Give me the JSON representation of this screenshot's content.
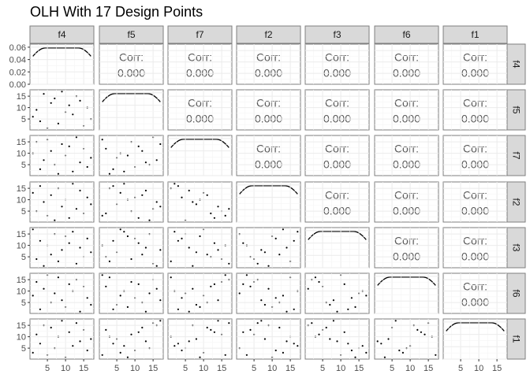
{
  "chart_data": {
    "type": "scatter-matrix",
    "title": "OLH With 17 Design Points",
    "variables": [
      "f4",
      "f5",
      "f7",
      "f2",
      "f3",
      "f6",
      "f1"
    ],
    "n_points": 17,
    "design": {
      "f4": [
        1,
        2,
        3,
        4,
        5,
        6,
        7,
        8,
        9,
        10,
        11,
        12,
        13,
        14,
        15,
        16,
        17
      ],
      "f5": [
        6,
        9,
        4,
        16,
        1,
        12,
        14,
        3,
        17,
        8,
        11,
        7,
        15,
        13,
        2,
        10,
        5
      ],
      "f7": [
        10,
        15,
        3,
        7,
        16,
        11,
        5,
        1,
        14,
        9,
        13,
        2,
        17,
        6,
        12,
        4,
        8
      ],
      "f2": [
        13,
        5,
        16,
        9,
        3,
        12,
        1,
        15,
        7,
        10,
        2,
        17,
        6,
        14,
        4,
        11,
        8
      ],
      "f3": [
        17,
        4,
        12,
        1,
        10,
        6,
        15,
        3,
        8,
        14,
        11,
        16,
        2,
        9,
        5,
        13,
        7
      ],
      "f6": [
        8,
        14,
        2,
        11,
        17,
        5,
        9,
        16,
        6,
        3,
        13,
        10,
        15,
        1,
        12,
        7,
        4
      ],
      "f1": [
        3,
        11,
        7,
        15,
        2,
        14,
        5,
        10,
        17,
        1,
        12,
        6,
        16,
        8,
        13,
        4,
        9
      ]
    },
    "correlation_label": "Corr:",
    "correlation_value": "0.000",
    "density_axis": {
      "ylim": [
        0,
        0.065
      ],
      "ticks": [
        0.0,
        0.02,
        0.04,
        0.06
      ],
      "tick_labels": [
        "0.00",
        "0.02",
        "0.04",
        "0.06"
      ]
    },
    "value_axis": {
      "lim": [
        0.2,
        17.8
      ],
      "ticks": [
        5,
        10,
        15
      ],
      "tick_labels": [
        "5",
        "10",
        "15"
      ]
    },
    "grid": true,
    "colors": {
      "panel_border": "#7f7f7f",
      "strip_fill": "#d9d9d9",
      "grid_major": "#ebebeb",
      "grid_minor": "#f5f5f5",
      "points": "#000000",
      "corr_text": "#595959"
    }
  }
}
